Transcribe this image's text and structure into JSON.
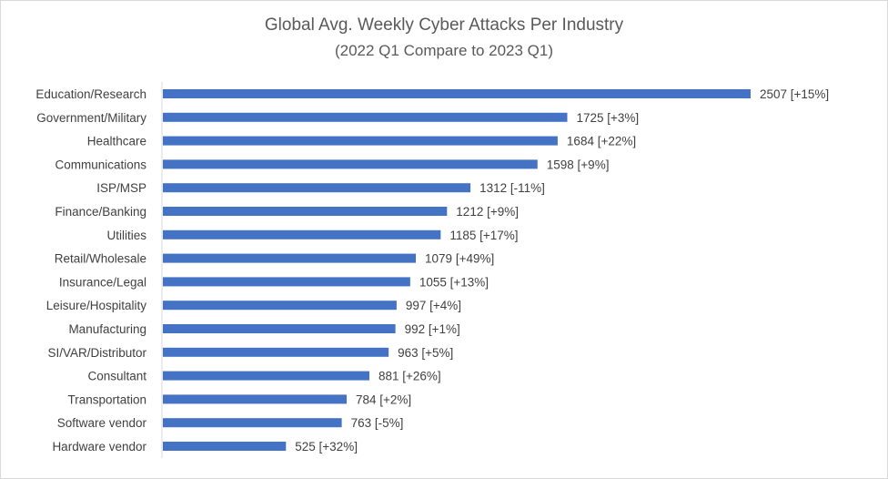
{
  "chart_data": {
    "type": "bar",
    "orientation": "horizontal",
    "title": "Global Avg. Weekly Cyber Attacks Per Industry",
    "subtitle": "(2022 Q1 Compare to 2023 Q1)",
    "categories": [
      "Education/Research",
      "Government/Military",
      "Healthcare",
      "Communications",
      "ISP/MSP",
      "Finance/Banking",
      "Utilities",
      "Retail/Wholesale",
      "Insurance/Legal",
      "Leisure/Hospitality",
      "Manufacturing",
      "SI/VAR/Distributor",
      "Consultant",
      "Transportation",
      "Software vendor",
      "Hardware vendor"
    ],
    "values": [
      2507,
      1725,
      1684,
      1598,
      1312,
      1212,
      1185,
      1079,
      1055,
      997,
      992,
      963,
      881,
      784,
      763,
      525
    ],
    "data_labels": [
      "2507 [+15%]",
      "1725 [+3%]",
      "1684 [+22%]",
      "1598 [+9%]",
      "1312 [-11%]",
      "1212 [+9%]",
      "1185 [+17%]",
      "1079 [+49%]",
      "1055 [+13%]",
      "997 [+4%]",
      "992 [+1%]",
      "963 [+5%]",
      "881 [+26%]",
      "784 [+2%]",
      "763 [-5%]",
      "525 [+32%]"
    ],
    "xlim": [
      0,
      2507
    ],
    "grid": false,
    "legend": "none",
    "bar_color": "#4472c4",
    "label_color": "#404040",
    "title_color": "#595959",
    "axis_color": "#d9d9d9"
  }
}
